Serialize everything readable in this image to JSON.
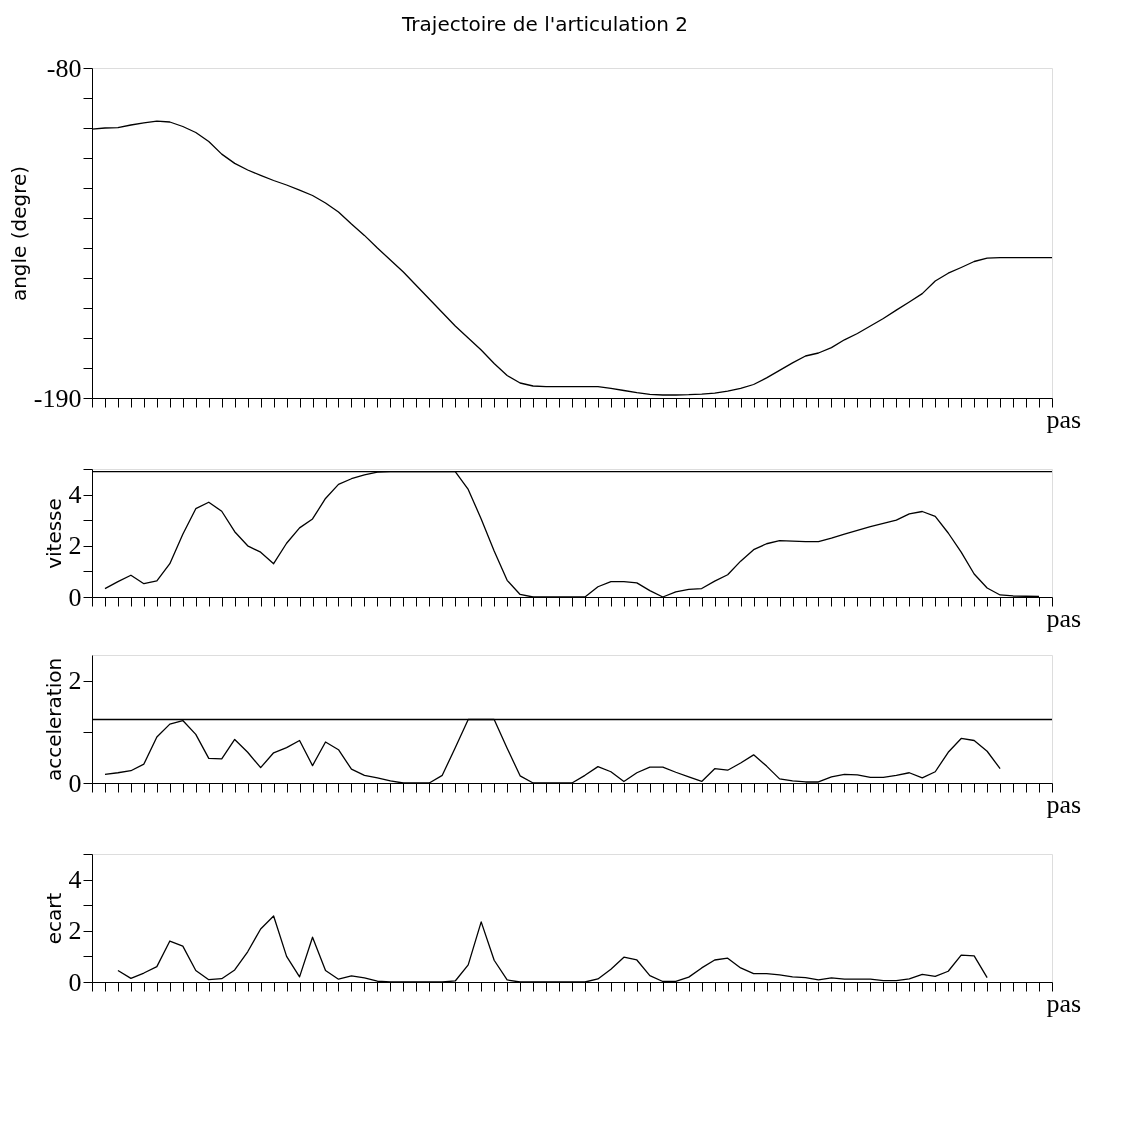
{
  "chart_data": [
    {
      "type": "line",
      "title": "Trajectoire de l'articulation 2",
      "ylabel": "angle (degre)",
      "xlabel": "pas",
      "tick_labels": "y",
      "categories": [
        null,
        null,
        null,
        null,
        null,
        null,
        null,
        null,
        null,
        null,
        null,
        null,
        null,
        null,
        null,
        null,
        null,
        null,
        null,
        null,
        null,
        null,
        null,
        null,
        null,
        null,
        null,
        null,
        null,
        null,
        null,
        null,
        null,
        null,
        null,
        null,
        null,
        null,
        null,
        null,
        null,
        null,
        null,
        null,
        null,
        null,
        null,
        null,
        null,
        null,
        null,
        null,
        null,
        null,
        null,
        null,
        null,
        null,
        null,
        null,
        null,
        null,
        null,
        null,
        null,
        null,
        null,
        null,
        null,
        null,
        null,
        null,
        null,
        null,
        null
      ],
      "ylim": [
        -190,
        -80
      ],
      "yticks": [
        -80,
        {
          "value": -90,
          "label": null
        },
        {
          "value": -100,
          "label": null
        },
        {
          "value": -110,
          "label": null
        },
        {
          "value": -120,
          "label": null
        },
        {
          "value": -130,
          "label": null
        },
        {
          "value": -140,
          "label": null
        },
        {
          "value": -150,
          "label": null
        },
        {
          "value": -160,
          "label": null
        },
        {
          "value": -170,
          "label": null
        },
        {
          "value": -180,
          "label": null
        },
        -190
      ],
      "series": [
        {
          "color": "#000000",
          "values": [
            -100.4,
            -100,
            -99.9,
            -99,
            -98.3,
            -97.7,
            -98,
            -99.5,
            -101.5,
            -104.5,
            -108.7,
            -111.8,
            -114,
            -115.8,
            -117.5,
            -119,
            -120.7,
            -122.5,
            -125,
            -128,
            -132,
            -135.8,
            -140,
            -144,
            -148,
            -152.5,
            -157,
            -161.5,
            -166,
            -170,
            -174,
            -178.5,
            -182.5,
            -185,
            -186,
            -186.2,
            -186.2,
            -186.2,
            -186.2,
            -186.2,
            -186.8,
            -187.5,
            -188.2,
            -188.8,
            -189,
            -189,
            -188.9,
            -188.7,
            -188.4,
            -187.7,
            -186.8,
            -185.5,
            -183.3,
            -180.8,
            -178.3,
            -176,
            -175,
            -173.2,
            -170.6,
            -168.5,
            -166,
            -163.5,
            -160.7,
            -158,
            -155.2,
            -151,
            -148.4,
            -146.5,
            -144.5,
            -143.4,
            -143.2,
            -143.2,
            -143.2,
            -143.2,
            -143.2
          ]
        }
      ]
    },
    {
      "type": "line",
      "ylabel": "vitesse",
      "xlabel": "pas",
      "tick_labels": "y",
      "categories": [
        null,
        null,
        null,
        null,
        null,
        null,
        null,
        null,
        null,
        null,
        null,
        null,
        null,
        null,
        null,
        null,
        null,
        null,
        null,
        null,
        null,
        null,
        null,
        null,
        null,
        null,
        null,
        null,
        null,
        null,
        null,
        null,
        null,
        null,
        null,
        null,
        null,
        null,
        null,
        null,
        null,
        null,
        null,
        null,
        null,
        null,
        null,
        null,
        null,
        null,
        null,
        null,
        null,
        null,
        null,
        null,
        null,
        null,
        null,
        null,
        null,
        null,
        null,
        null,
        null,
        null,
        null,
        null,
        null,
        null,
        null,
        null,
        null,
        null,
        null
      ],
      "ylim": [
        0,
        5
      ],
      "yticks": [
        0,
        {
          "value": 1,
          "label": null
        },
        2,
        {
          "value": 3,
          "label": null
        },
        4,
        {
          "value": 5,
          "label": null
        }
      ],
      "ref_lines": [
        {
          "axis": "y",
          "value": 4.9,
          "color": "#000000"
        }
      ],
      "series": [
        {
          "color": "#000000",
          "values": [
            null,
            0.33,
            0.6,
            0.85,
            0.52,
            0.63,
            1.3,
            2.45,
            3.45,
            3.7,
            3.35,
            2.55,
            2.0,
            1.75,
            1.3,
            2.1,
            2.7,
            3.05,
            3.85,
            4.4,
            4.62,
            4.77,
            4.88,
            4.9,
            4.9,
            4.9,
            4.9,
            4.9,
            4.9,
            4.2,
            3.05,
            1.8,
            0.65,
            0.1,
            0,
            0,
            0,
            0,
            0,
            0.4,
            0.6,
            0.6,
            0.55,
            0.25,
            0,
            0.2,
            0.3,
            0.33,
            0.62,
            0.87,
            1.4,
            1.85,
            2.08,
            2.2,
            2.18,
            2.16,
            2.16,
            2.3,
            2.46,
            2.6,
            2.75,
            2.88,
            3.0,
            3.25,
            3.34,
            3.15,
            2.5,
            1.75,
            0.9,
            0.35,
            0.08,
            0.04,
            0.03,
            0.02,
            null
          ]
        }
      ]
    },
    {
      "type": "line",
      "ylabel": "acceleration",
      "xlabel": "pas",
      "tick_labels": "y",
      "categories": [
        null,
        null,
        null,
        null,
        null,
        null,
        null,
        null,
        null,
        null,
        null,
        null,
        null,
        null,
        null,
        null,
        null,
        null,
        null,
        null,
        null,
        null,
        null,
        null,
        null,
        null,
        null,
        null,
        null,
        null,
        null,
        null,
        null,
        null,
        null,
        null,
        null,
        null,
        null,
        null,
        null,
        null,
        null,
        null,
        null,
        null,
        null,
        null,
        null,
        null,
        null,
        null,
        null,
        null,
        null,
        null,
        null,
        null,
        null,
        null,
        null,
        null,
        null,
        null,
        null,
        null,
        null,
        null,
        null,
        null,
        null,
        null,
        null,
        null,
        null
      ],
      "ylim": [
        0,
        2.5
      ],
      "yticks": [
        0,
        {
          "value": 1,
          "label": null
        },
        2
      ],
      "ref_lines": [
        {
          "axis": "y",
          "value": 1.24,
          "color": "#000000"
        }
      ],
      "series": [
        {
          "color": "#000000",
          "values": [
            null,
            0.17,
            0.2,
            0.24,
            0.37,
            0.9,
            1.15,
            1.22,
            0.95,
            0.48,
            0.47,
            0.85,
            0.6,
            0.3,
            0.59,
            0.69,
            0.83,
            0.34,
            0.8,
            0.65,
            0.27,
            0.15,
            0.1,
            0.04,
            0,
            0,
            0,
            0.15,
            0.69,
            1.24,
            1.24,
            1.24,
            0.68,
            0.14,
            0,
            0,
            0,
            0,
            0.15,
            0.32,
            0.22,
            0.03,
            0.2,
            0.31,
            0.31,
            0.21,
            0.12,
            0.03,
            0.28,
            0.25,
            0.39,
            0.55,
            0.33,
            0.08,
            0.04,
            0.02,
            0.02,
            0.12,
            0.17,
            0.16,
            0.11,
            0.11,
            0.15,
            0.2,
            0.1,
            0.22,
            0.6,
            0.87,
            0.83,
            0.62,
            0.28,
            null,
            null,
            null,
            null
          ]
        }
      ]
    },
    {
      "type": "line",
      "ylabel": "ecart",
      "xlabel": "pas",
      "tick_labels": "y",
      "categories": [
        null,
        null,
        null,
        null,
        null,
        null,
        null,
        null,
        null,
        null,
        null,
        null,
        null,
        null,
        null,
        null,
        null,
        null,
        null,
        null,
        null,
        null,
        null,
        null,
        null,
        null,
        null,
        null,
        null,
        null,
        null,
        null,
        null,
        null,
        null,
        null,
        null,
        null,
        null,
        null,
        null,
        null,
        null,
        null,
        null,
        null,
        null,
        null,
        null,
        null,
        null,
        null,
        null,
        null,
        null,
        null,
        null,
        null,
        null,
        null,
        null,
        null,
        null,
        null,
        null,
        null,
        null,
        null,
        null,
        null,
        null,
        null,
        null,
        null,
        null
      ],
      "ylim": [
        0,
        5
      ],
      "yticks": [
        0,
        {
          "value": 1,
          "label": null
        },
        2,
        {
          "value": 3,
          "label": null
        },
        4,
        {
          "value": 5,
          "label": null
        }
      ],
      "series": [
        {
          "color": "#000000",
          "values": [
            null,
            null,
            0.45,
            0.14,
            0.35,
            0.6,
            1.6,
            1.4,
            0.45,
            0.09,
            0.13,
            0.47,
            1.18,
            2.07,
            2.58,
            1.0,
            0.2,
            1.75,
            0.45,
            0.11,
            0.24,
            0.16,
            0.03,
            0,
            0,
            0,
            0,
            0,
            0.04,
            0.67,
            2.35,
            0.85,
            0.08,
            0,
            0,
            0,
            0,
            0,
            0,
            0.12,
            0.5,
            0.97,
            0.86,
            0.25,
            0.02,
            0.02,
            0.19,
            0.55,
            0.86,
            0.93,
            0.55,
            0.33,
            0.33,
            0.28,
            0.2,
            0.17,
            0.08,
            0.16,
            0.11,
            0.11,
            0.11,
            0.05,
            0.05,
            0.12,
            0.3,
            0.22,
            0.42,
            1.05,
            1.02,
            0.17,
            null,
            null,
            null,
            null,
            null
          ]
        }
      ]
    }
  ]
}
